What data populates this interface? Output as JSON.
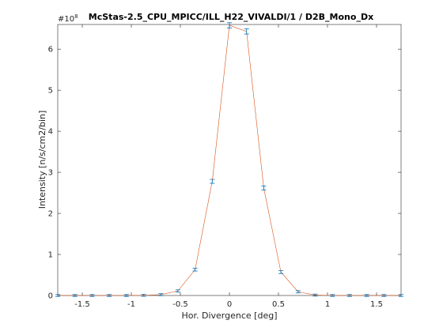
{
  "chart_data": {
    "type": "line",
    "title": "McStas-2.5_CPU_MPICC/ILL_H22_VIVALDI/1 / D2B_Mono_Dx",
    "xlabel": "Hor. Divergence [deg]",
    "ylabel": "Intensity [n/s/cm2/bin]",
    "y_exponent_base": "#10",
    "y_exponent_power": "8",
    "y_scale_factor": 100000000,
    "xlim": [
      -1.75,
      1.75
    ],
    "ylim": [
      0,
      660000000
    ],
    "x_ticks": [
      -1.5,
      -1,
      -0.5,
      0,
      0.5,
      1,
      1.5
    ],
    "x_tick_labels": [
      "-1.5",
      "-1",
      "-0.5",
      "0",
      "0.5",
      "1",
      "1.5"
    ],
    "y_ticks": [
      0,
      100000000,
      200000000,
      300000000,
      400000000,
      500000000,
      600000000
    ],
    "y_tick_labels": [
      "0",
      "1",
      "2",
      "3",
      "4",
      "5",
      "6"
    ],
    "grid": false,
    "series": [
      {
        "line_color": "#d95319",
        "marker_color": "#0072bd",
        "x": [
          -1.75,
          -1.575,
          -1.4,
          -1.225,
          -1.05,
          -0.875,
          -0.7,
          -0.525,
          -0.35,
          -0.175,
          0,
          0.175,
          0.35,
          0.525,
          0.7,
          0.875,
          1.05,
          1.225,
          1.4,
          1.575,
          1.75
        ],
        "values": [
          0,
          0,
          0,
          0,
          0,
          500000,
          2000000,
          11000000,
          63000000,
          278000000,
          658000000,
          643000000,
          262000000,
          57000000,
          9000000,
          1000000,
          0,
          0,
          0,
          0,
          0
        ],
        "errors": [
          0,
          0,
          0,
          0,
          0,
          100000,
          200000,
          500000,
          1200000,
          2500000,
          4000000,
          4000000,
          2500000,
          1200000,
          500000,
          100000,
          0,
          0,
          0,
          0,
          0
        ]
      }
    ]
  }
}
